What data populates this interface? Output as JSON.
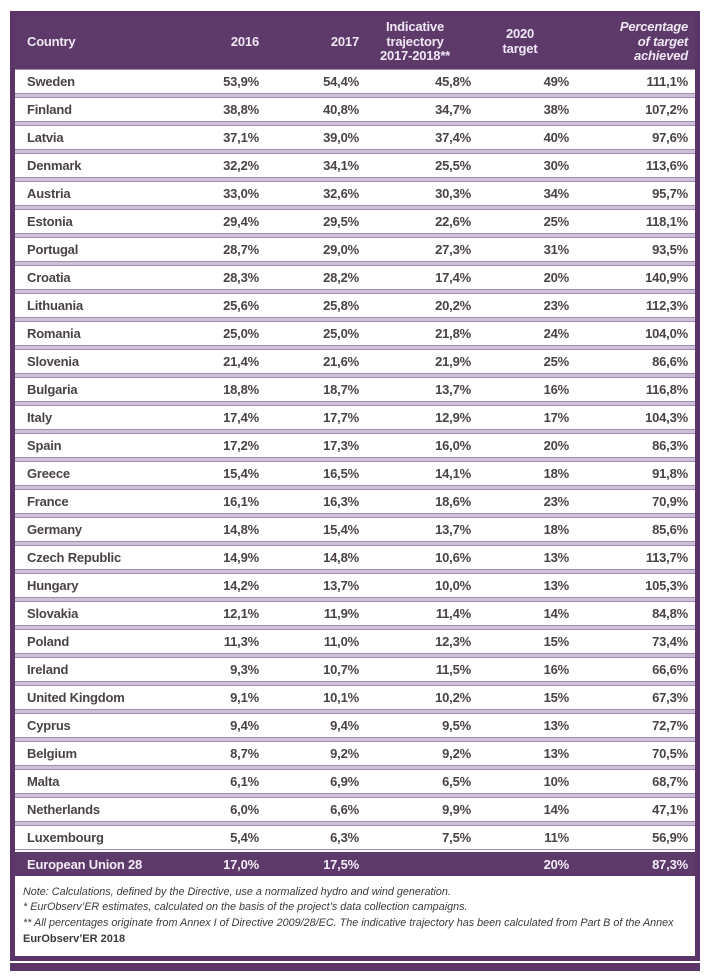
{
  "table": {
    "header": {
      "country": "Country",
      "y2016": "2016",
      "y2017": "2017",
      "trajectory": "Indicative\ntrajectory\n2017-2018**",
      "target2020": "2020\ntarget",
      "achieved": "Percentage\nof target\nachieved"
    },
    "rows": [
      {
        "country": "Sweden",
        "y2016": "53,9%",
        "y2017": "54,4%",
        "trajectory": "45,8%",
        "target2020": "49%",
        "achieved": "111,1%"
      },
      {
        "country": "Finland",
        "y2016": "38,8%",
        "y2017": "40,8%",
        "trajectory": "34,7%",
        "target2020": "38%",
        "achieved": "107,2%"
      },
      {
        "country": "Latvia",
        "y2016": "37,1%",
        "y2017": "39,0%",
        "trajectory": "37,4%",
        "target2020": "40%",
        "achieved": "97,6%"
      },
      {
        "country": "Denmark",
        "y2016": "32,2%",
        "y2017": "34,1%",
        "trajectory": "25,5%",
        "target2020": "30%",
        "achieved": "113,6%"
      },
      {
        "country": "Austria",
        "y2016": "33,0%",
        "y2017": "32,6%",
        "trajectory": "30,3%",
        "target2020": "34%",
        "achieved": "95,7%"
      },
      {
        "country": "Estonia",
        "y2016": "29,4%",
        "y2017": "29,5%",
        "trajectory": "22,6%",
        "target2020": "25%",
        "achieved": "118,1%"
      },
      {
        "country": "Portugal",
        "y2016": "28,7%",
        "y2017": "29,0%",
        "trajectory": "27,3%",
        "target2020": "31%",
        "achieved": "93,5%"
      },
      {
        "country": "Croatia",
        "y2016": "28,3%",
        "y2017": "28,2%",
        "trajectory": "17,4%",
        "target2020": "20%",
        "achieved": "140,9%"
      },
      {
        "country": "Lithuania",
        "y2016": "25,6%",
        "y2017": "25,8%",
        "trajectory": "20,2%",
        "target2020": "23%",
        "achieved": "112,3%"
      },
      {
        "country": "Romania",
        "y2016": "25,0%",
        "y2017": "25,0%",
        "trajectory": "21,8%",
        "target2020": "24%",
        "achieved": "104,0%"
      },
      {
        "country": "Slovenia",
        "y2016": "21,4%",
        "y2017": "21,6%",
        "trajectory": "21,9%",
        "target2020": "25%",
        "achieved": "86,6%"
      },
      {
        "country": "Bulgaria",
        "y2016": "18,8%",
        "y2017": "18,7%",
        "trajectory": "13,7%",
        "target2020": "16%",
        "achieved": "116,8%"
      },
      {
        "country": "Italy",
        "y2016": "17,4%",
        "y2017": "17,7%",
        "trajectory": "12,9%",
        "target2020": "17%",
        "achieved": "104,3%"
      },
      {
        "country": "Spain",
        "y2016": "17,2%",
        "y2017": "17,3%",
        "trajectory": "16,0%",
        "target2020": "20%",
        "achieved": "86,3%"
      },
      {
        "country": "Greece",
        "y2016": "15,4%",
        "y2017": "16,5%",
        "trajectory": "14,1%",
        "target2020": "18%",
        "achieved": "91,8%"
      },
      {
        "country": "France",
        "y2016": "16,1%",
        "y2017": "16,3%",
        "trajectory": "18,6%",
        "target2020": "23%",
        "achieved": "70,9%"
      },
      {
        "country": "Germany",
        "y2016": "14,8%",
        "y2017": "15,4%",
        "trajectory": "13,7%",
        "target2020": "18%",
        "achieved": "85,6%"
      },
      {
        "country": "Czech Republic",
        "y2016": "14,9%",
        "y2017": "14,8%",
        "trajectory": "10,6%",
        "target2020": "13%",
        "achieved": "113,7%"
      },
      {
        "country": "Hungary",
        "y2016": "14,2%",
        "y2017": "13,7%",
        "trajectory": "10,0%",
        "target2020": "13%",
        "achieved": "105,3%"
      },
      {
        "country": "Slovakia",
        "y2016": "12,1%",
        "y2017": "11,9%",
        "trajectory": "11,4%",
        "target2020": "14%",
        "achieved": "84,8%"
      },
      {
        "country": "Poland",
        "y2016": "11,3%",
        "y2017": "11,0%",
        "trajectory": "12,3%",
        "target2020": "15%",
        "achieved": "73,4%"
      },
      {
        "country": "Ireland",
        "y2016": "9,3%",
        "y2017": "10,7%",
        "trajectory": "11,5%",
        "target2020": "16%",
        "achieved": "66,6%"
      },
      {
        "country": "United Kingdom",
        "y2016": "9,1%",
        "y2017": "10,1%",
        "trajectory": "10,2%",
        "target2020": "15%",
        "achieved": "67,3%"
      },
      {
        "country": "Cyprus",
        "y2016": "9,4%",
        "y2017": "9,4%",
        "trajectory": "9,5%",
        "target2020": "13%",
        "achieved": "72,7%"
      },
      {
        "country": "Belgium",
        "y2016": "8,7%",
        "y2017": "9,2%",
        "trajectory": "9,2%",
        "target2020": "13%",
        "achieved": "70,5%"
      },
      {
        "country": "Malta",
        "y2016": "6,1%",
        "y2017": "6,9%",
        "trajectory": "6,5%",
        "target2020": "10%",
        "achieved": "68,7%"
      },
      {
        "country": "Netherlands",
        "y2016": "6,0%",
        "y2017": "6,6%",
        "trajectory": "9,9%",
        "target2020": "14%",
        "achieved": "47,1%"
      },
      {
        "country": "Luxembourg",
        "y2016": "5,4%",
        "y2017": "6,3%",
        "trajectory": "7,5%",
        "target2020": "11%",
        "achieved": "56,9%"
      }
    ],
    "total_row": {
      "country": "European Union 28",
      "y2016": "17,0%",
      "y2017": "17,5%",
      "trajectory": "",
      "target2020": "20%",
      "achieved": "87,3%"
    },
    "notes": [
      "Note: Calculations, defined by the Directive, use a normalized hydro and wind generation.",
      "* EurObserv’ER estimates, calculated on the basis of the project’s data collection campaigns.",
      "** All percentages originate from Annex I of Directive 2009/28/EC. The indicative trajectory has been calculated from Part B of the Annex"
    ],
    "source": "EurObserv’ER 2018"
  },
  "colors": {
    "header_purple": "#5e3a6b",
    "frame_purple": "#5c3568",
    "separator_lavender": "#cec1da",
    "separator_line": "#a18ab4",
    "body_text": "#4a4247",
    "header_text": "#efe8f3"
  },
  "chart_data": {
    "type": "table",
    "title": "Share of renewable energy vs 2020 targets (EurObserv'ER 2018)",
    "columns": [
      "Country",
      "2016",
      "2017",
      "Indicative trajectory 2017-2018**",
      "2020 target",
      "Percentage of target achieved"
    ],
    "rows": [
      [
        "Sweden",
        "53,9%",
        "54,4%",
        "45,8%",
        "49%",
        "111,1%"
      ],
      [
        "Finland",
        "38,8%",
        "40,8%",
        "34,7%",
        "38%",
        "107,2%"
      ],
      [
        "Latvia",
        "37,1%",
        "39,0%",
        "37,4%",
        "40%",
        "97,6%"
      ],
      [
        "Denmark",
        "32,2%",
        "34,1%",
        "25,5%",
        "30%",
        "113,6%"
      ],
      [
        "Austria",
        "33,0%",
        "32,6%",
        "30,3%",
        "34%",
        "95,7%"
      ],
      [
        "Estonia",
        "29,4%",
        "29,5%",
        "22,6%",
        "25%",
        "118,1%"
      ],
      [
        "Portugal",
        "28,7%",
        "29,0%",
        "27,3%",
        "31%",
        "93,5%"
      ],
      [
        "Croatia",
        "28,3%",
        "28,2%",
        "17,4%",
        "20%",
        "140,9%"
      ],
      [
        "Lithuania",
        "25,6%",
        "25,8%",
        "20,2%",
        "23%",
        "112,3%"
      ],
      [
        "Romania",
        "25,0%",
        "25,0%",
        "21,8%",
        "24%",
        "104,0%"
      ],
      [
        "Slovenia",
        "21,4%",
        "21,6%",
        "21,9%",
        "25%",
        "86,6%"
      ],
      [
        "Bulgaria",
        "18,8%",
        "18,7%",
        "13,7%",
        "16%",
        "116,8%"
      ],
      [
        "Italy",
        "17,4%",
        "17,7%",
        "12,9%",
        "17%",
        "104,3%"
      ],
      [
        "Spain",
        "17,2%",
        "17,3%",
        "16,0%",
        "20%",
        "86,3%"
      ],
      [
        "Greece",
        "15,4%",
        "16,5%",
        "14,1%",
        "18%",
        "91,8%"
      ],
      [
        "France",
        "16,1%",
        "16,3%",
        "18,6%",
        "23%",
        "70,9%"
      ],
      [
        "Germany",
        "14,8%",
        "15,4%",
        "13,7%",
        "18%",
        "85,6%"
      ],
      [
        "Czech Republic",
        "14,9%",
        "14,8%",
        "10,6%",
        "13%",
        "113,7%"
      ],
      [
        "Hungary",
        "14,2%",
        "13,7%",
        "10,0%",
        "13%",
        "105,3%"
      ],
      [
        "Slovakia",
        "12,1%",
        "11,9%",
        "11,4%",
        "14%",
        "84,8%"
      ],
      [
        "Poland",
        "11,3%",
        "11,0%",
        "12,3%",
        "15%",
        "73,4%"
      ],
      [
        "Ireland",
        "9,3%",
        "10,7%",
        "11,5%",
        "16%",
        "66,6%"
      ],
      [
        "United Kingdom",
        "9,1%",
        "10,1%",
        "10,2%",
        "15%",
        "67,3%"
      ],
      [
        "Cyprus",
        "9,4%",
        "9,4%",
        "9,5%",
        "13%",
        "72,7%"
      ],
      [
        "Belgium",
        "8,7%",
        "9,2%",
        "9,2%",
        "13%",
        "70,5%"
      ],
      [
        "Malta",
        "6,1%",
        "6,9%",
        "6,5%",
        "10%",
        "68,7%"
      ],
      [
        "Netherlands",
        "6,0%",
        "6,6%",
        "9,9%",
        "14%",
        "47,1%"
      ],
      [
        "Luxembourg",
        "5,4%",
        "6,3%",
        "7,5%",
        "11%",
        "56,9%"
      ],
      [
        "European Union 28",
        "17,0%",
        "17,5%",
        "",
        "20%",
        "87,3%"
      ]
    ]
  }
}
